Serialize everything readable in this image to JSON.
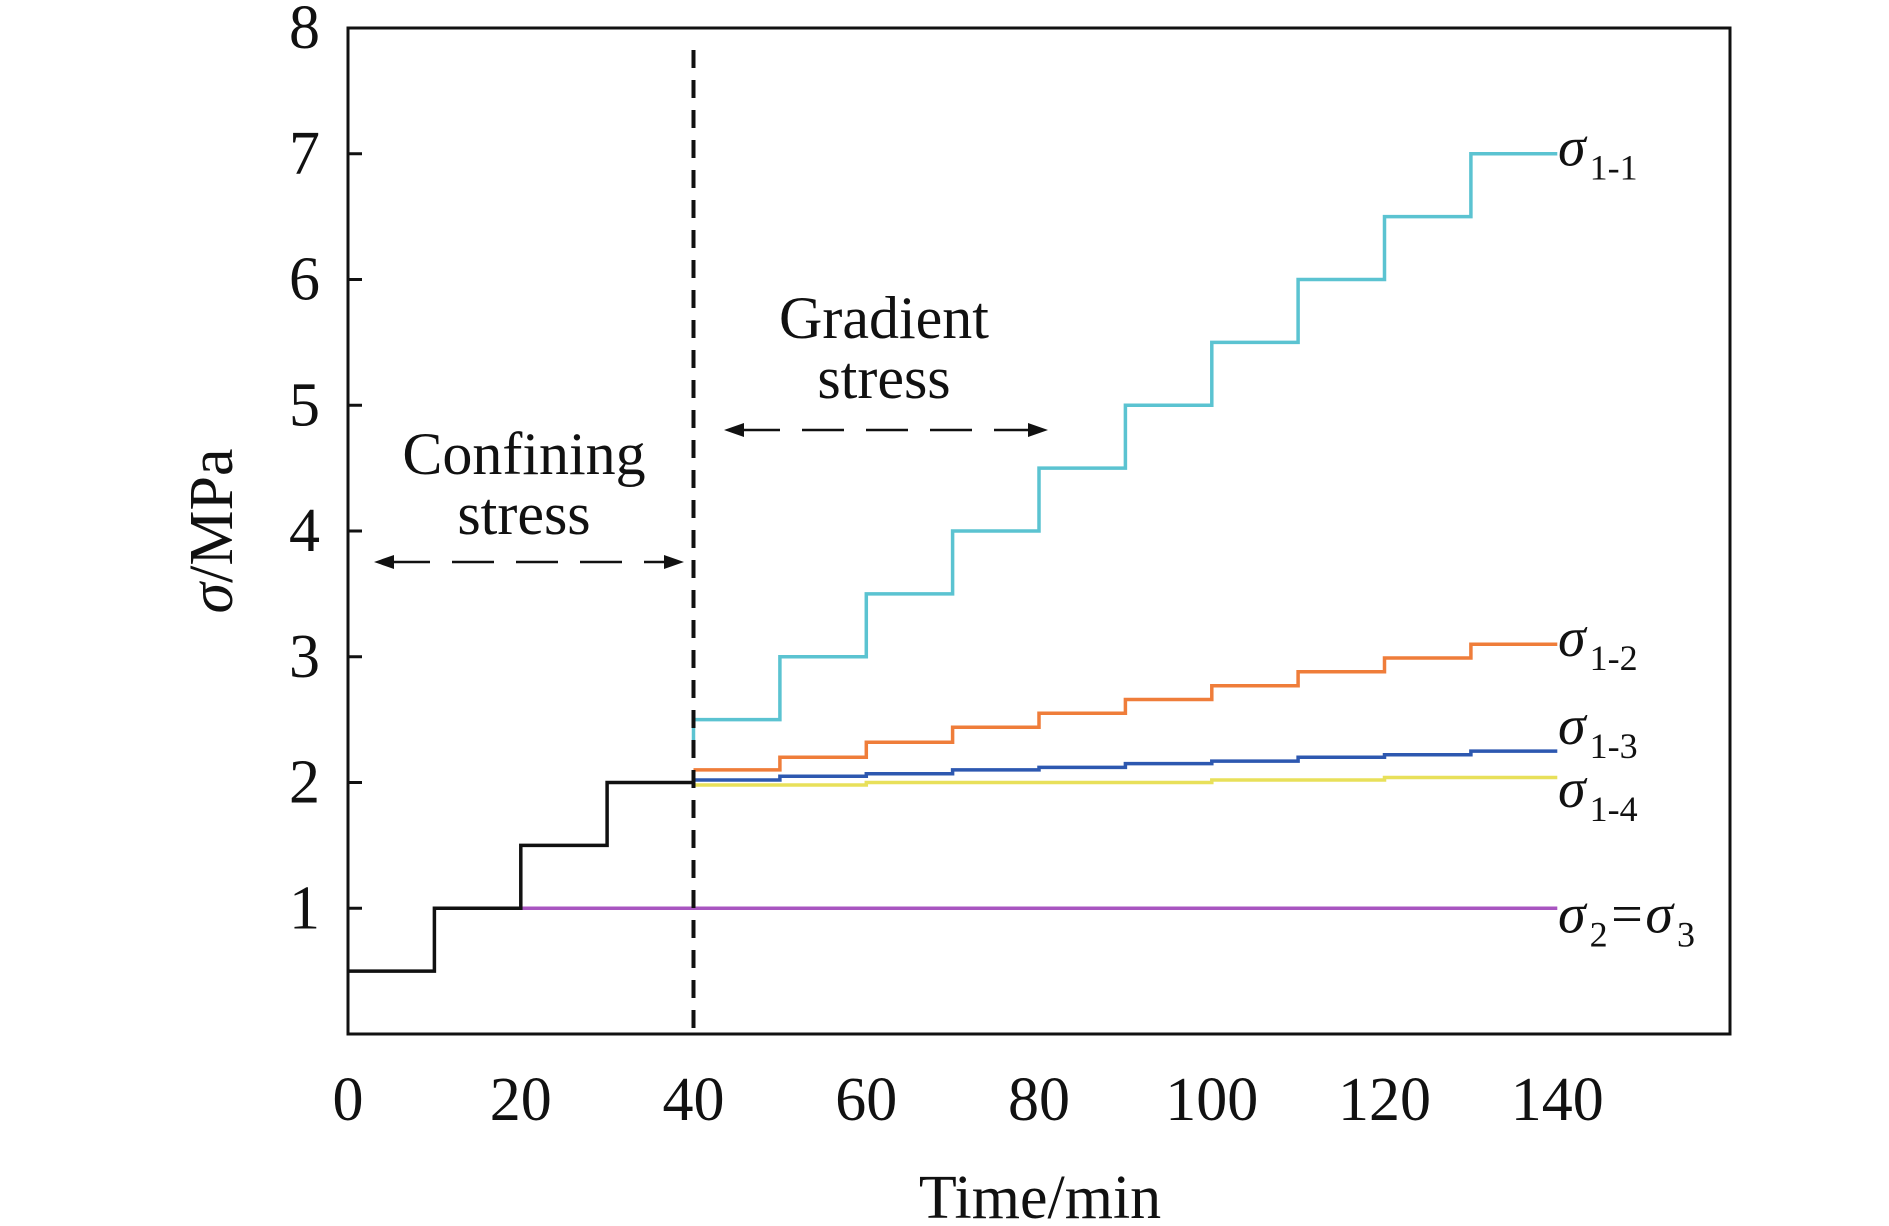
{
  "chart_data": {
    "type": "line",
    "step": true,
    "xlabel": "Time/min",
    "ylabel_italic": "σ",
    "ylabel_rest": "/MPa",
    "xlim": [
      0,
      160
    ],
    "ylim": [
      0,
      8
    ],
    "xticks": [
      0,
      20,
      40,
      60,
      80,
      100,
      120,
      140
    ],
    "yticks": [
      1,
      2,
      3,
      4,
      5,
      6,
      7,
      8
    ],
    "grid": false,
    "divider_x": 40,
    "annotations": {
      "confining_line1": "Confining",
      "confining_line2": "stress",
      "gradient_line1": "Gradient",
      "gradient_line2": "stress"
    },
    "series": [
      {
        "name": "σ1-1",
        "label_main": "σ",
        "label_sub": "1-1",
        "color": "#5bc3d1",
        "points": [
          [
            40,
            2.3
          ],
          [
            40,
            2.5
          ],
          [
            50,
            2.5
          ],
          [
            50,
            3.0
          ],
          [
            60,
            3.0
          ],
          [
            60,
            3.5
          ],
          [
            70,
            3.5
          ],
          [
            70,
            4.0
          ],
          [
            80,
            4.0
          ],
          [
            80,
            4.5
          ],
          [
            90,
            4.5
          ],
          [
            90,
            5.0
          ],
          [
            100,
            5.0
          ],
          [
            100,
            5.5
          ],
          [
            110,
            5.5
          ],
          [
            110,
            6.0
          ],
          [
            120,
            6.0
          ],
          [
            120,
            6.5
          ],
          [
            130,
            6.5
          ],
          [
            130,
            7.0
          ],
          [
            140,
            7.0
          ]
        ]
      },
      {
        "name": "σ1-2",
        "label_main": "σ",
        "label_sub": "1-2",
        "color": "#ef7d3a",
        "points": [
          [
            40,
            2.1
          ],
          [
            50,
            2.1
          ],
          [
            50,
            2.2
          ],
          [
            60,
            2.2
          ],
          [
            60,
            2.32
          ],
          [
            70,
            2.32
          ],
          [
            70,
            2.44
          ],
          [
            80,
            2.44
          ],
          [
            80,
            2.55
          ],
          [
            90,
            2.55
          ],
          [
            90,
            2.66
          ],
          [
            100,
            2.66
          ],
          [
            100,
            2.77
          ],
          [
            110,
            2.77
          ],
          [
            110,
            2.88
          ],
          [
            120,
            2.88
          ],
          [
            120,
            2.99
          ],
          [
            130,
            2.99
          ],
          [
            130,
            3.1
          ],
          [
            140,
            3.1
          ]
        ]
      },
      {
        "name": "σ1-3",
        "label_main": "σ",
        "label_sub": "1-3",
        "color": "#2d58b0",
        "points": [
          [
            40,
            2.02
          ],
          [
            50,
            2.02
          ],
          [
            50,
            2.05
          ],
          [
            60,
            2.05
          ],
          [
            60,
            2.07
          ],
          [
            70,
            2.07
          ],
          [
            70,
            2.1
          ],
          [
            80,
            2.1
          ],
          [
            80,
            2.12
          ],
          [
            90,
            2.12
          ],
          [
            90,
            2.15
          ],
          [
            100,
            2.15
          ],
          [
            100,
            2.17
          ],
          [
            110,
            2.17
          ],
          [
            110,
            2.2
          ],
          [
            120,
            2.2
          ],
          [
            120,
            2.22
          ],
          [
            130,
            2.22
          ],
          [
            130,
            2.25
          ],
          [
            140,
            2.25
          ]
        ]
      },
      {
        "name": "σ1-4",
        "label_main": "σ",
        "label_sub": "1-4",
        "color": "#e8e05a",
        "points": [
          [
            40,
            1.98
          ],
          [
            60,
            1.98
          ],
          [
            60,
            2.0
          ],
          [
            100,
            2.0
          ],
          [
            100,
            2.02
          ],
          [
            120,
            2.02
          ],
          [
            120,
            2.04
          ],
          [
            140,
            2.04
          ]
        ]
      },
      {
        "name": "σ2=σ3",
        "label_main": "σ",
        "label_sub": "2",
        "label_eq": "=",
        "label_main2": "σ",
        "label_sub2": "3",
        "color": "#a855c0",
        "points": [
          [
            20,
            1.0
          ],
          [
            140,
            1.0
          ]
        ]
      },
      {
        "name": "confining",
        "color": "#111111",
        "points": [
          [
            0,
            0.5
          ],
          [
            10,
            0.5
          ],
          [
            10,
            1.0
          ],
          [
            20,
            1.0
          ],
          [
            20,
            1.5
          ],
          [
            30,
            1.5
          ],
          [
            30,
            2.0
          ],
          [
            40,
            2.0
          ]
        ]
      }
    ]
  }
}
